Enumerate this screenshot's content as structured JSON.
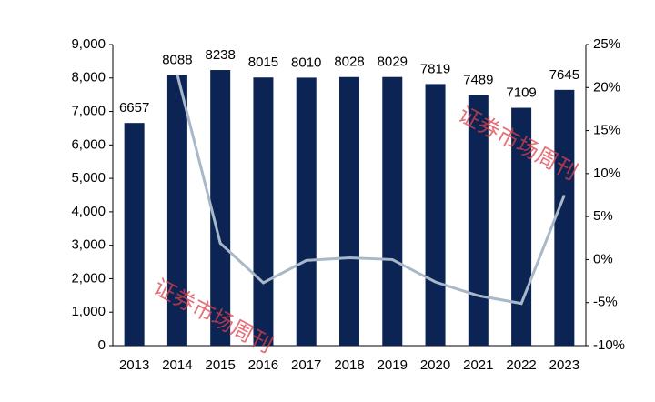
{
  "chart_data": {
    "type": "bar-line",
    "categories": [
      "2013",
      "2014",
      "2015",
      "2016",
      "2017",
      "2018",
      "2019",
      "2020",
      "2021",
      "2022",
      "2023"
    ],
    "series": [
      {
        "type": "bar",
        "color": "#0b2454",
        "values": [
          6657,
          8088,
          8238,
          8015,
          8010,
          8028,
          8029,
          7819,
          7489,
          7109,
          7645
        ]
      },
      {
        "type": "line",
        "axis": "y2",
        "color": "#a9b8c8",
        "values": [
          null,
          21.5,
          1.9,
          -2.7,
          -0.1,
          0.2,
          0.0,
          -2.6,
          -4.2,
          -5.1,
          7.5
        ]
      }
    ],
    "ylim": [
      0,
      9000
    ],
    "yticks": [
      0,
      {
        "value": 1000,
        "label": "1,000"
      },
      {
        "value": 2000,
        "label": "2,000"
      },
      {
        "value": 3000,
        "label": "3,000"
      },
      {
        "value": 4000,
        "label": "4,000"
      },
      {
        "value": 5000,
        "label": "5,000"
      },
      {
        "value": 6000,
        "label": "6,000"
      },
      {
        "value": 7000,
        "label": "7,000"
      },
      {
        "value": 8000,
        "label": "8,000"
      },
      {
        "value": 9000,
        "label": "9,000"
      }
    ],
    "y2lim": [
      -10,
      25
    ],
    "y2ticks": [
      {
        "value": -10,
        "label": "-10%"
      },
      {
        "value": -5,
        "label": "-5%"
      },
      {
        "value": 0,
        "label": "0%"
      },
      {
        "value": 5,
        "label": "5%"
      },
      {
        "value": 10,
        "label": "10%"
      },
      {
        "value": 15,
        "label": "15%"
      },
      {
        "value": 20,
        "label": "20%"
      },
      {
        "value": 25,
        "label": "25%"
      }
    ],
    "grid": false,
    "watermark": "证券市场周刊"
  }
}
